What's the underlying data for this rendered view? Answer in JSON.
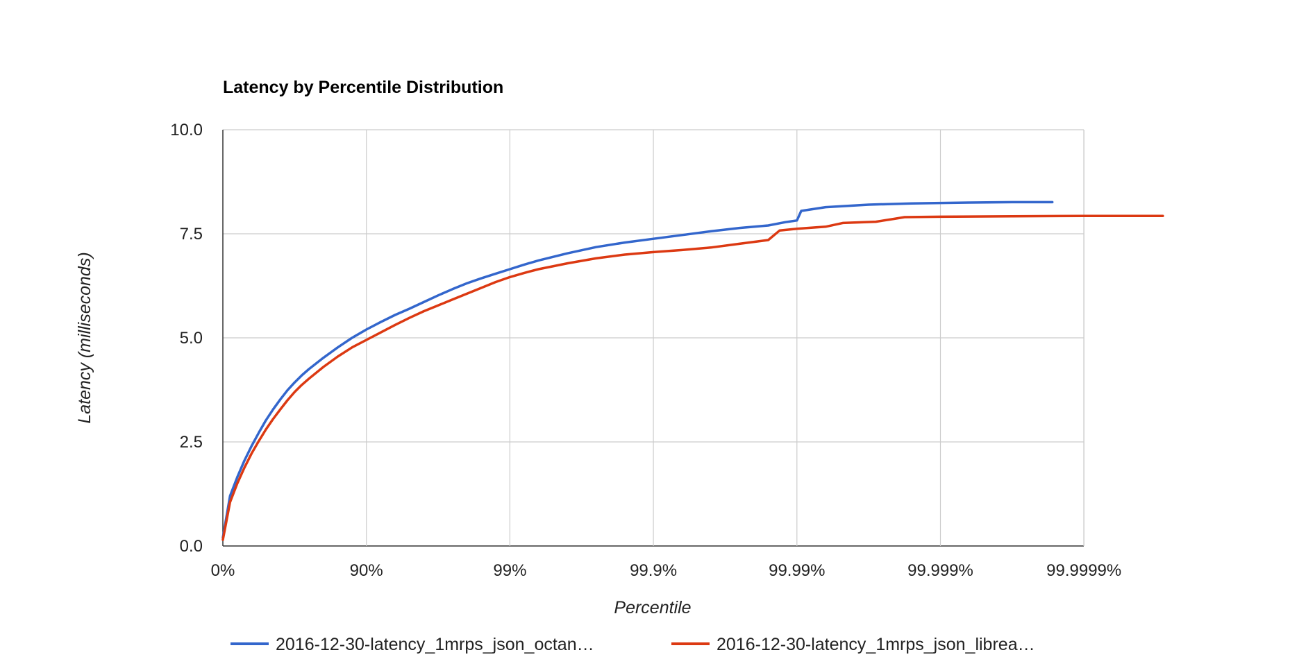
{
  "chart_data": {
    "type": "line",
    "title": "Latency by Percentile Distribution",
    "xlabel": "Percentile",
    "ylabel": "Latency (milliseconds)",
    "x_scale": "log(1/(1-percentile))",
    "x_ticks": [
      "0%",
      "90%",
      "99%",
      "99.9%",
      "99.99%",
      "99.999%",
      "99.9999%"
    ],
    "y_ticks": [
      "0.0",
      "2.5",
      "5.0",
      "7.5",
      "10.0"
    ],
    "ylim": [
      0,
      10
    ],
    "grid": true,
    "legend_position": "bottom",
    "series": [
      {
        "name": "2016-12-30-latency_1mrps_json_octan…",
        "color": "#3366cc",
        "points": [
          [
            0,
            0.2
          ],
          [
            0.05,
            1.2
          ],
          [
            0.1,
            1.65
          ],
          [
            0.15,
            2.05
          ],
          [
            0.2,
            2.4
          ],
          [
            0.25,
            2.72
          ],
          [
            0.3,
            3.02
          ],
          [
            0.35,
            3.28
          ],
          [
            0.4,
            3.52
          ],
          [
            0.45,
            3.74
          ],
          [
            0.5,
            3.93
          ],
          [
            0.55,
            4.1
          ],
          [
            0.6,
            4.25
          ],
          [
            0.7,
            4.52
          ],
          [
            0.8,
            4.77
          ],
          [
            0.9,
            5.0
          ],
          [
            1.0,
            5.2
          ],
          [
            1.1,
            5.38
          ],
          [
            1.2,
            5.55
          ],
          [
            1.3,
            5.7
          ],
          [
            1.4,
            5.86
          ],
          [
            1.5,
            6.02
          ],
          [
            1.6,
            6.17
          ],
          [
            1.7,
            6.31
          ],
          [
            1.8,
            6.43
          ],
          [
            1.9,
            6.54
          ],
          [
            2.0,
            6.65
          ],
          [
            2.1,
            6.76
          ],
          [
            2.2,
            6.86
          ],
          [
            2.4,
            7.03
          ],
          [
            2.6,
            7.18
          ],
          [
            2.8,
            7.29
          ],
          [
            3.0,
            7.38
          ],
          [
            3.2,
            7.47
          ],
          [
            3.4,
            7.56
          ],
          [
            3.6,
            7.64
          ],
          [
            3.8,
            7.7
          ],
          [
            3.92,
            7.78
          ],
          [
            4.0,
            7.82
          ],
          [
            4.03,
            8.05
          ],
          [
            4.2,
            8.14
          ],
          [
            4.5,
            8.2
          ],
          [
            4.8,
            8.23
          ],
          [
            5.2,
            8.25
          ],
          [
            5.5,
            8.26
          ],
          [
            5.78,
            8.26
          ]
        ]
      },
      {
        "name": "2016-12-30-latency_1mrps_json_librea…",
        "color": "#dc3912",
        "points": [
          [
            0,
            0.15
          ],
          [
            0.05,
            1.05
          ],
          [
            0.1,
            1.5
          ],
          [
            0.15,
            1.88
          ],
          [
            0.2,
            2.22
          ],
          [
            0.25,
            2.52
          ],
          [
            0.3,
            2.8
          ],
          [
            0.35,
            3.05
          ],
          [
            0.4,
            3.28
          ],
          [
            0.45,
            3.5
          ],
          [
            0.5,
            3.7
          ],
          [
            0.55,
            3.87
          ],
          [
            0.6,
            4.02
          ],
          [
            0.7,
            4.3
          ],
          [
            0.8,
            4.55
          ],
          [
            0.9,
            4.77
          ],
          [
            1.0,
            4.95
          ],
          [
            1.1,
            5.13
          ],
          [
            1.2,
            5.31
          ],
          [
            1.3,
            5.48
          ],
          [
            1.4,
            5.64
          ],
          [
            1.5,
            5.78
          ],
          [
            1.6,
            5.92
          ],
          [
            1.7,
            6.06
          ],
          [
            1.8,
            6.2
          ],
          [
            1.9,
            6.34
          ],
          [
            2.0,
            6.46
          ],
          [
            2.1,
            6.56
          ],
          [
            2.2,
            6.65
          ],
          [
            2.4,
            6.79
          ],
          [
            2.6,
            6.91
          ],
          [
            2.8,
            7.0
          ],
          [
            3.0,
            7.06
          ],
          [
            3.2,
            7.11
          ],
          [
            3.4,
            7.17
          ],
          [
            3.6,
            7.26
          ],
          [
            3.8,
            7.35
          ],
          [
            3.88,
            7.58
          ],
          [
            4.0,
            7.62
          ],
          [
            4.2,
            7.67
          ],
          [
            4.32,
            7.76
          ],
          [
            4.55,
            7.79
          ],
          [
            4.68,
            7.86
          ],
          [
            4.75,
            7.9
          ],
          [
            5.0,
            7.91
          ],
          [
            5.5,
            7.92
          ],
          [
            6.0,
            7.93
          ],
          [
            6.55,
            7.93
          ]
        ]
      }
    ]
  }
}
